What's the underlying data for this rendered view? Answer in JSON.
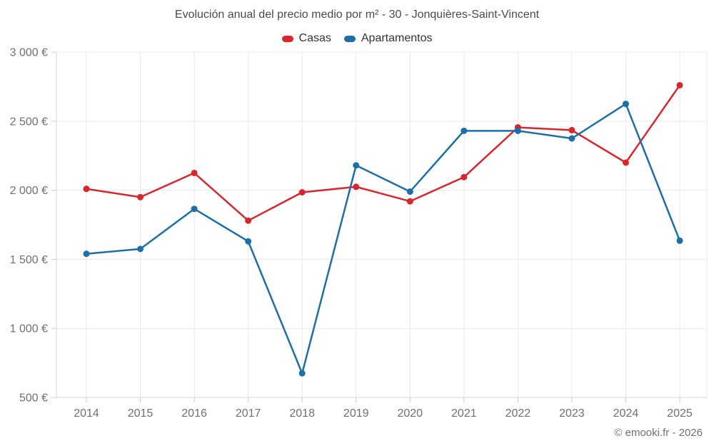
{
  "chart_data": {
    "type": "line",
    "title": "Evolución anual del precio medio por m² - 30 - Jonquières-Saint-Vincent",
    "categories": [
      "2014",
      "2015",
      "2016",
      "2017",
      "2018",
      "2019",
      "2020",
      "2021",
      "2022",
      "2023",
      "2024",
      "2025"
    ],
    "series": [
      {
        "name": "Casas",
        "color": "#d8262c",
        "values": [
          2010,
          1950,
          2125,
          1780,
          1985,
          2025,
          1920,
          2095,
          2455,
          2435,
          2200,
          2760
        ]
      },
      {
        "name": "Apartamentos",
        "color": "#1d6fa8",
        "values": [
          1540,
          1575,
          1865,
          1630,
          675,
          2180,
          1990,
          2430,
          2430,
          2375,
          2625,
          1635
        ]
      }
    ],
    "xlabel": "",
    "ylabel": "",
    "ylim": [
      500,
      3000
    ],
    "yticks": [
      {
        "value": 500,
        "label": "500 €"
      },
      {
        "value": 1000,
        "label": "1 000 €"
      },
      {
        "value": 1500,
        "label": "1 500 €"
      },
      {
        "value": 2000,
        "label": "2 000 €"
      },
      {
        "value": 2500,
        "label": "2 500 €"
      },
      {
        "value": 3000,
        "label": "3 000 €"
      }
    ],
    "grid": true,
    "legend_position": "top",
    "colors": {
      "grid": "#e9e9e9",
      "axis": "#d6d6d6",
      "tick": "#cccccc",
      "axis_text": "#707070",
      "title_text": "#4a4a4a",
      "legend_text": "#333333"
    }
  },
  "footer": {
    "copyright": "© emooki.fr - 2026"
  }
}
